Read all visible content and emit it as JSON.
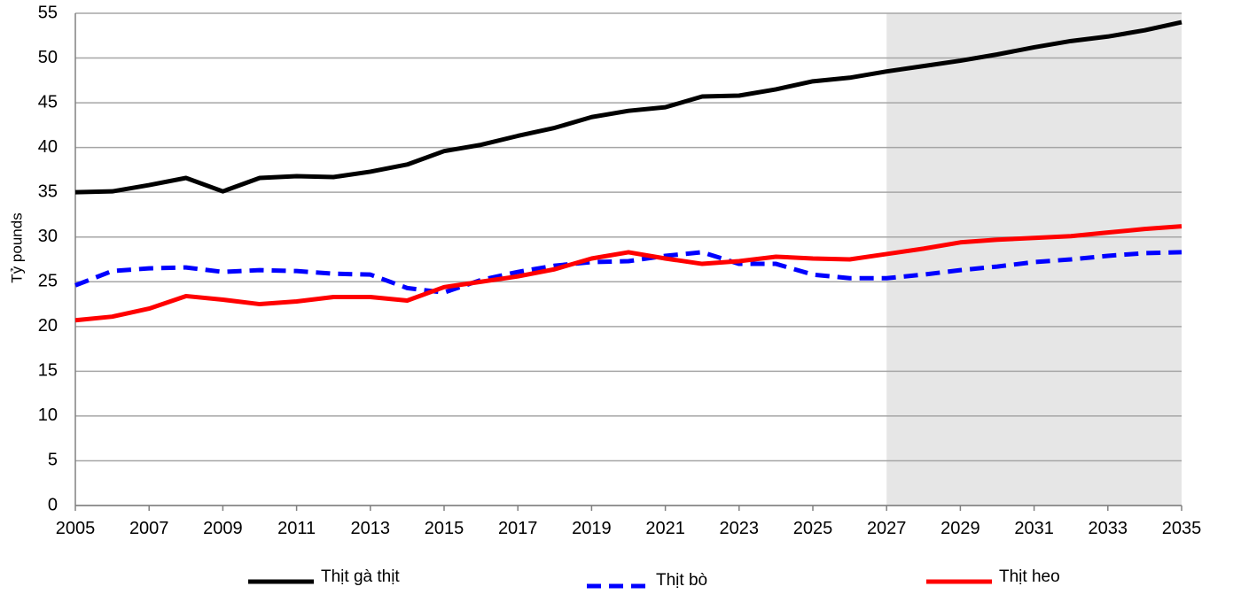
{
  "chart_data": {
    "type": "line",
    "y_label": "Tỷ pounds",
    "x": [
      2005,
      2006,
      2007,
      2008,
      2009,
      2010,
      2011,
      2012,
      2013,
      2014,
      2015,
      2016,
      2017,
      2018,
      2019,
      2020,
      2021,
      2022,
      2023,
      2024,
      2025,
      2026,
      2027,
      2028,
      2029,
      2030,
      2031,
      2032,
      2033,
      2034,
      2035
    ],
    "xlim": [
      2005,
      2035
    ],
    "xticks": [
      2005,
      2007,
      2009,
      2011,
      2013,
      2015,
      2017,
      2019,
      2021,
      2023,
      2025,
      2027,
      2029,
      2031,
      2033,
      2035
    ],
    "ylim": [
      0,
      55
    ],
    "yticks": [
      0,
      5,
      10,
      15,
      20,
      25,
      30,
      35,
      40,
      45,
      50,
      55
    ],
    "grid": true,
    "shaded_xrange": [
      2027,
      2035
    ],
    "shade_color": "#e6e6e6",
    "legend": "bottom",
    "series": [
      {
        "name": "Thịt gà thịt",
        "color": "#000000",
        "dash": false,
        "values": [
          35.0,
          35.1,
          35.8,
          36.6,
          35.1,
          36.6,
          36.8,
          36.7,
          37.3,
          38.1,
          39.6,
          40.3,
          41.3,
          42.2,
          43.4,
          44.1,
          44.5,
          45.7,
          45.8,
          46.5,
          47.4,
          47.8,
          48.5,
          49.1,
          49.7,
          50.4,
          51.2,
          51.9,
          52.4,
          53.1,
          54.0
        ]
      },
      {
        "name": "Thịt bò",
        "color": "#0000ff",
        "dash": true,
        "values": [
          24.6,
          26.2,
          26.5,
          26.6,
          26.1,
          26.3,
          26.2,
          25.9,
          25.8,
          24.3,
          23.8,
          25.2,
          26.1,
          26.8,
          27.2,
          27.3,
          27.9,
          28.3,
          27.0,
          27.0,
          25.8,
          25.4,
          25.4,
          25.8,
          26.3,
          26.7,
          27.2,
          27.5,
          27.9,
          28.2,
          28.3
        ]
      },
      {
        "name": "Thịt heo",
        "color": "#ff0000",
        "dash": false,
        "values": [
          20.7,
          21.1,
          22.0,
          23.4,
          23.0,
          22.5,
          22.8,
          23.3,
          23.3,
          22.9,
          24.4,
          25.0,
          25.6,
          26.4,
          27.6,
          28.3,
          27.6,
          27.0,
          27.3,
          27.8,
          27.6,
          27.5,
          28.1,
          28.7,
          29.4,
          29.7,
          29.9,
          30.1,
          30.5,
          30.9,
          31.2
        ]
      }
    ]
  }
}
